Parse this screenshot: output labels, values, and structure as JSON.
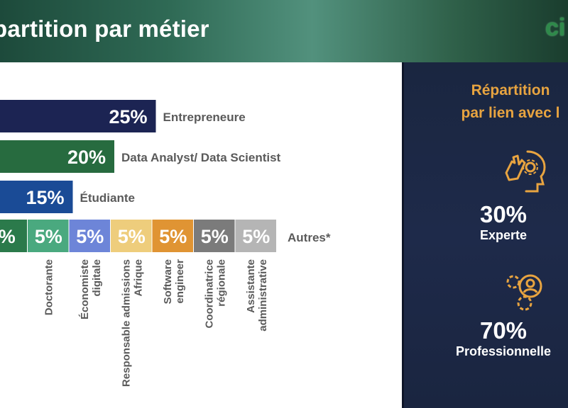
{
  "header": {
    "title": "partition par métier"
  },
  "logo": {
    "text": "ci"
  },
  "chart_data": {
    "type": "bar",
    "orientation": "horizontal",
    "unit": "%",
    "main_bars": [
      {
        "label": "Entrepreneure",
        "value": 25,
        "value_label": "25%",
        "color": "#1c2453"
      },
      {
        "label": "Data Analyst/ Data Scientist",
        "value": 20,
        "value_label": "20%",
        "color": "#276b3f"
      },
      {
        "label": "Étudiante",
        "value": 15,
        "value_label": "15%",
        "color": "#1a4b96"
      }
    ],
    "stacked": {
      "label": "Autres*",
      "segments": [
        {
          "label": "",
          "value": 5,
          "value_label": "%",
          "color": "#2b7a4b"
        },
        {
          "label": "Doctorante",
          "value": 5,
          "value_label": "5%",
          "color": "#4aa97f"
        },
        {
          "label": "Économiste digitale",
          "value": 5,
          "value_label": "5%",
          "color": "#6d85d8"
        },
        {
          "label": "Responsable admissions Afrique",
          "value": 5,
          "value_label": "5%",
          "color": "#eecd7c"
        },
        {
          "label": "Software engineer",
          "value": 5,
          "value_label": "5%",
          "color": "#e09433"
        },
        {
          "label": "Coordinatrice régionale",
          "value": 5,
          "value_label": "5%",
          "color": "#7b7b7b"
        },
        {
          "label": "Assistante administrative",
          "value": 5,
          "value_label": "5%",
          "color": "#b5b5b5"
        }
      ]
    }
  },
  "side_panel": {
    "title_line1": "Répartition",
    "title_line2": "par lien avec l",
    "items": [
      {
        "icon": "brain-gear-hand-icon",
        "percent": "30%",
        "label": "Experte"
      },
      {
        "icon": "gears-person-icon",
        "percent": "70%",
        "label": "Professionnelle"
      }
    ]
  }
}
